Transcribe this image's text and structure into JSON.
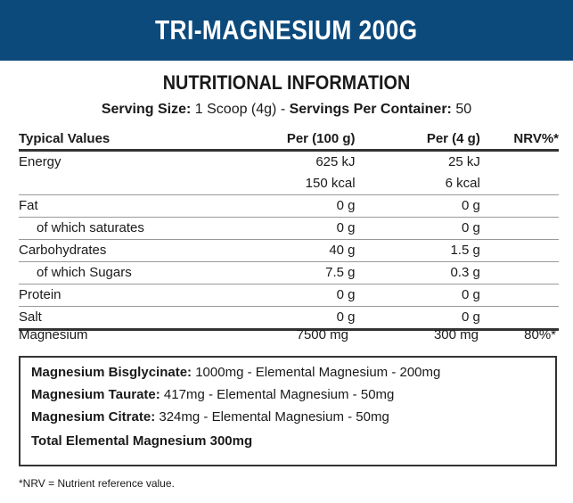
{
  "banner": {
    "title": "TRI-MAGNESIUM 200G"
  },
  "heading": "NUTRITIONAL INFORMATION",
  "serving": {
    "size_label": "Serving Size:",
    "size_value": " 1 Scoop (4g) - ",
    "per_container_label": "Servings Per Container:",
    "per_container_value": " 50"
  },
  "table": {
    "headers": [
      "Typical Values",
      "Per (100 g)",
      "Per (4 g)",
      "NRV%*"
    ],
    "rows": [
      [
        "Energy",
        "625 kJ",
        "25 kJ",
        ""
      ],
      [
        "",
        "150 kcal",
        "6 kcal",
        ""
      ],
      [
        "Fat",
        "0 g",
        "0 g",
        ""
      ],
      [
        "of which saturates",
        "0 g",
        "0 g",
        ""
      ],
      [
        "Carbohydrates",
        "40 g",
        "1.5 g",
        ""
      ],
      [
        "of which Sugars",
        "7.5 g",
        "0.3 g",
        ""
      ],
      [
        "Protein",
        "0 g",
        "0 g",
        ""
      ],
      [
        "Salt",
        "0 g",
        "0 g",
        ""
      ]
    ],
    "magnesium": [
      "Magnesium",
      "7500 mg",
      "300 mg",
      "80%*"
    ]
  },
  "box": {
    "lines": [
      {
        "label": "Magnesium Bisglycinate:",
        "text": " 1000mg - Elemental Magnesium - 200mg"
      },
      {
        "label": "Magnesium Taurate:",
        "text": " 417mg - Elemental Magnesium - 50mg"
      },
      {
        "label": "Magnesium Citrate:",
        "text": " 324mg - Elemental Magnesium - 50mg"
      }
    ],
    "total": "Total Elemental Magnesium 300mg"
  },
  "footnote": "*NRV = Nutrient reference value."
}
